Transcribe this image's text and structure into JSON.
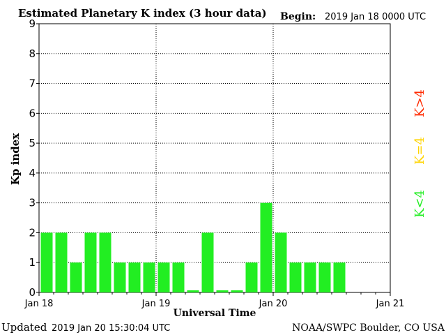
{
  "header": {
    "title": "Estimated Planetary K index (3 hour data)",
    "begin_label": "Begin:",
    "begin_value": "2019 Jan 18 0000 UTC"
  },
  "footer": {
    "updated_label": "Updated",
    "updated_value": "2019 Jan 20 15:30:04 UTC",
    "source": "NOAA/SWPC Boulder, CO USA"
  },
  "legend": {
    "storm": {
      "label": "K>4",
      "color": "#ff2a00"
    },
    "active": {
      "label": "K=4",
      "color": "#ffd400"
    },
    "quiet": {
      "label": "K<4",
      "color": "#22ee22"
    }
  },
  "chart_data": {
    "type": "bar",
    "title": "Estimated Planetary K index (3 hour data)",
    "xlabel": "Universal Time",
    "ylabel": "Kp index",
    "ylim": [
      0,
      9
    ],
    "yticks": [
      0,
      1,
      2,
      3,
      4,
      5,
      6,
      7,
      8,
      9
    ],
    "x_tick_labels": [
      "Jan 18",
      "Jan 19",
      "Jan 20",
      "Jan 21"
    ],
    "bar_color": "#22ee22",
    "grid": true,
    "interval_hours": 3,
    "values": [
      2,
      2,
      1,
      2,
      2,
      1,
      1,
      1,
      1,
      1,
      0.07,
      2,
      0.07,
      0.07,
      1,
      3,
      2,
      1,
      1,
      1,
      1
    ]
  }
}
